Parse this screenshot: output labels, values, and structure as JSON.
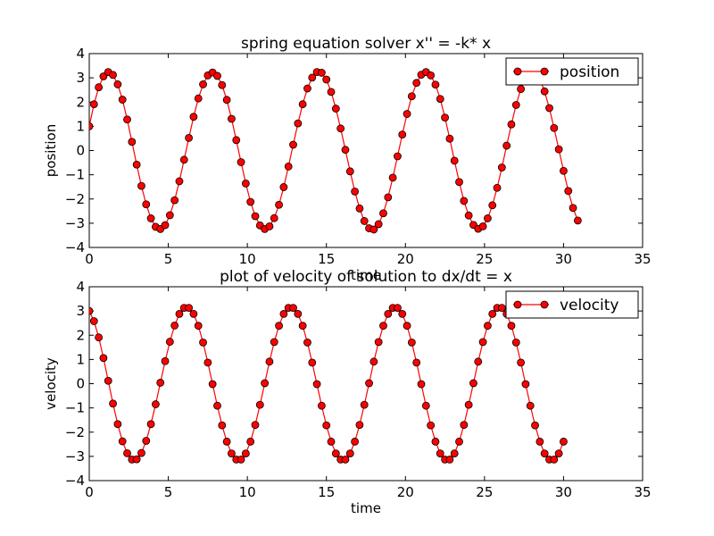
{
  "chart_data": [
    {
      "type": "line",
      "title": "spring equation solver x'' = -k* x",
      "xlabel": "time",
      "ylabel": "position",
      "xlim": [
        0,
        35
      ],
      "ylim": [
        -4,
        4
      ],
      "xticks": [
        0,
        5,
        10,
        15,
        20,
        25,
        30,
        35
      ],
      "yticks": [
        -4,
        -3,
        -2,
        -1,
        0,
        1,
        2,
        3,
        4
      ],
      "grid": false,
      "legend": "top-right",
      "color": "#ff0000",
      "x": [
        0.0,
        0.3,
        0.6,
        0.9,
        1.2,
        1.5,
        1.8,
        2.1,
        2.4,
        2.7,
        3.0,
        3.3,
        3.6,
        3.9,
        4.2,
        4.5,
        4.8,
        5.1,
        5.4,
        5.7,
        6.0,
        6.3,
        6.6,
        6.9,
        7.2,
        7.5,
        7.8,
        8.1,
        8.4,
        8.7,
        9.0,
        9.3,
        9.6,
        9.9,
        10.2,
        10.5,
        10.8,
        11.1,
        11.4,
        11.7,
        12.0,
        12.3,
        12.6,
        12.9,
        13.2,
        13.5,
        13.8,
        14.1,
        14.4,
        14.7,
        15.0,
        15.3,
        15.6,
        15.9,
        16.2,
        16.5,
        16.8,
        17.1,
        17.4,
        17.7,
        18.0,
        18.3,
        18.6,
        18.9,
        19.2,
        19.5,
        19.8,
        20.1,
        20.4,
        20.7,
        21.0,
        21.3,
        21.6,
        21.9,
        22.2,
        22.5,
        22.8,
        23.1,
        23.4,
        23.7,
        24.0,
        24.3,
        24.6,
        24.9,
        25.2,
        25.5,
        25.8,
        26.1,
        26.4,
        26.7,
        27.0,
        27.3,
        27.6,
        27.9,
        28.2,
        28.5,
        28.8,
        29.1,
        29.4,
        29.7,
        30.0,
        30.3,
        30.6,
        30.9
      ],
      "series": [
        {
          "name": "position",
          "values": [
            1.0,
            1.91,
            2.61,
            3.06,
            3.24,
            3.12,
            2.73,
            2.1,
            1.28,
            0.36,
            -0.58,
            -1.46,
            -2.22,
            -2.8,
            -3.15,
            -3.24,
            -3.08,
            -2.67,
            -2.05,
            -1.27,
            -0.38,
            0.52,
            1.39,
            2.15,
            2.73,
            3.1,
            3.22,
            3.08,
            2.7,
            2.09,
            1.31,
            0.43,
            -0.48,
            -1.36,
            -2.12,
            -2.71,
            -3.09,
            -3.24,
            -3.13,
            -2.79,
            -2.24,
            -1.51,
            -0.66,
            0.24,
            1.12,
            1.91,
            2.56,
            3.01,
            3.24,
            3.21,
            2.93,
            2.42,
            1.73,
            0.91,
            0.03,
            -0.86,
            -1.69,
            -2.39,
            -2.91,
            -3.21,
            -3.26,
            -3.04,
            -2.59,
            -1.93,
            -1.12,
            -0.24,
            0.66,
            1.51,
            2.24,
            2.79,
            3.13,
            3.24,
            3.1,
            2.72,
            2.13,
            1.36,
            0.49,
            -0.42,
            -1.3,
            -2.08,
            -2.68,
            -3.07,
            -3.23,
            -3.13,
            -2.8,
            -2.26,
            -1.54,
            -0.7,
            0.2,
            1.08,
            1.88,
            2.54,
            3.0,
            3.24,
            3.22,
            2.94,
            2.44,
            1.75,
            0.93,
            0.05,
            -0.84,
            -1.67,
            -2.37,
            -2.89
          ]
        }
      ]
    },
    {
      "type": "line",
      "title": "plot of velocity of solution to dx/dt = x",
      "xlabel": "time",
      "ylabel": "velocity",
      "xlim": [
        0,
        35
      ],
      "ylim": [
        -4,
        4
      ],
      "xticks": [
        0,
        5,
        10,
        15,
        20,
        25,
        30,
        35
      ],
      "yticks": [
        -4,
        -3,
        -2,
        -1,
        0,
        1,
        2,
        3,
        4
      ],
      "grid": false,
      "legend": "top-right",
      "color": "#ff0000",
      "x": [
        0.0,
        0.3,
        0.6,
        0.9,
        1.2,
        1.5,
        1.8,
        2.1,
        2.4,
        2.7,
        3.0,
        3.3,
        3.6,
        3.9,
        4.2,
        4.5,
        4.8,
        5.1,
        5.4,
        5.7,
        6.0,
        6.3,
        6.6,
        6.9,
        7.2,
        7.5,
        7.8,
        8.1,
        8.4,
        8.7,
        9.0,
        9.3,
        9.6,
        9.9,
        10.2,
        10.5,
        10.8,
        11.1,
        11.4,
        11.7,
        12.0,
        12.3,
        12.6,
        12.9,
        13.2,
        13.5,
        13.8,
        14.1,
        14.4,
        14.7,
        15.0,
        15.3,
        15.6,
        15.9,
        16.2,
        16.5,
        16.8,
        17.1,
        17.4,
        17.7,
        18.0,
        18.3,
        18.6,
        18.9,
        19.2,
        19.5,
        19.8,
        20.1,
        20.4,
        20.7,
        21.0,
        21.3,
        21.6,
        21.9,
        22.2,
        22.5,
        22.8,
        23.1,
        23.4,
        23.7,
        24.0,
        24.3,
        24.6,
        24.9,
        25.2,
        25.5,
        25.8,
        26.1,
        26.4,
        26.7,
        27.0,
        27.3,
        27.6,
        27.9,
        28.2,
        28.5,
        28.8,
        29.1,
        29.4,
        29.7,
        30.0
      ],
      "series": [
        {
          "name": "velocity",
          "values": [
            3.0,
            2.58,
            1.91,
            1.06,
            0.12,
            -0.82,
            -1.67,
            -2.38,
            -2.87,
            -3.13,
            -3.12,
            -2.86,
            -2.36,
            -1.67,
            -0.85,
            0.04,
            0.93,
            1.73,
            2.4,
            2.88,
            3.13,
            3.13,
            2.88,
            2.39,
            1.7,
            0.87,
            -0.02,
            -0.91,
            -1.72,
            -2.39,
            -2.88,
            -3.13,
            -3.13,
            -2.88,
            -2.39,
            -1.7,
            -0.87,
            0.02,
            0.91,
            1.72,
            2.39,
            2.88,
            3.13,
            3.13,
            2.88,
            2.39,
            1.7,
            0.87,
            -0.02,
            -0.91,
            -1.72,
            -2.39,
            -2.88,
            -3.13,
            -3.13,
            -2.88,
            -2.39,
            -1.7,
            -0.87,
            0.02,
            0.91,
            1.72,
            2.39,
            2.88,
            3.13,
            3.13,
            2.88,
            2.39,
            1.7,
            0.87,
            -0.02,
            -0.91,
            -1.72,
            -2.39,
            -2.88,
            -3.13,
            -3.13,
            -2.88,
            -2.39,
            -1.7,
            -0.87,
            0.02,
            0.91,
            1.72,
            2.39,
            2.88,
            3.13,
            3.13,
            2.88,
            2.39,
            1.7,
            0.87,
            -0.02,
            -0.91,
            -1.72,
            -2.39,
            -2.88,
            -3.13,
            -3.13,
            -2.88,
            -2.39
          ]
        }
      ]
    }
  ]
}
